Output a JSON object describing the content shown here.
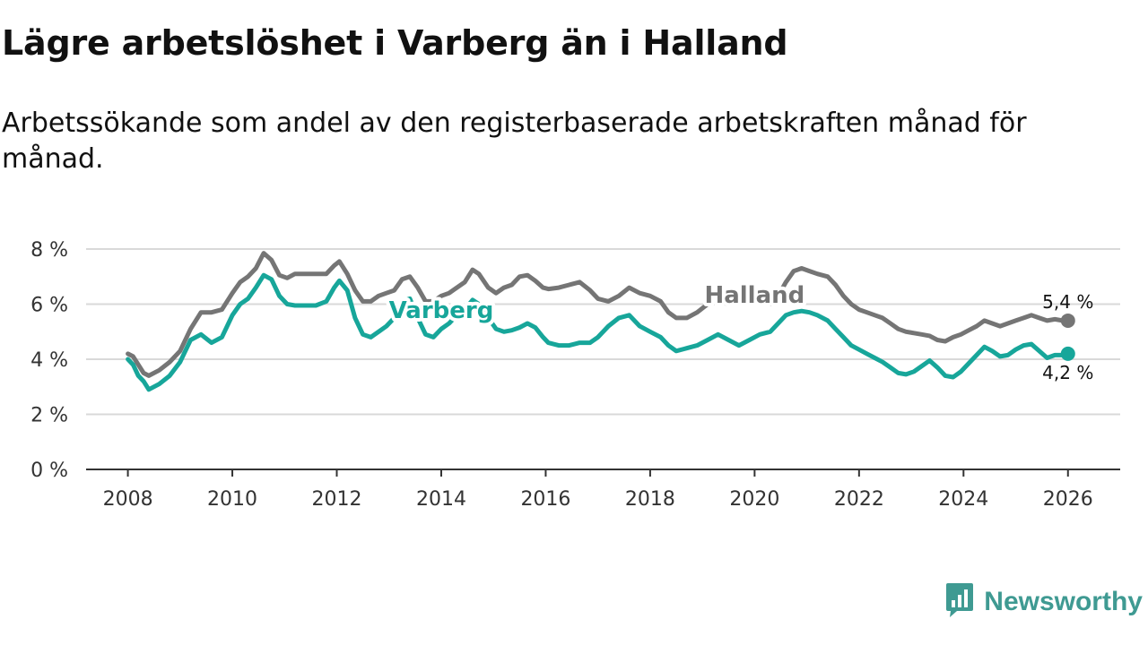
{
  "header": {
    "title": "Lägre arbetslöshet i Varberg än i Halland",
    "subtitle": "Arbetssökande som andel av den registerbaserade arbetskraften månad för månad."
  },
  "brand": {
    "name": "Newsworthy",
    "icon": "newsworthy-logo-icon",
    "color": "#3f9a92"
  },
  "chart_data": {
    "type": "line",
    "title": "Lägre arbetslöshet i Varberg än i Halland",
    "subtitle": "Arbetssökande som andel av den registerbaserade arbetskraften månad för månad.",
    "xlabel": "",
    "ylabel": "",
    "xlim": [
      2007.2,
      2027.0
    ],
    "ylim": [
      0,
      8
    ],
    "grid": true,
    "x_ticks": [
      2008,
      2010,
      2012,
      2014,
      2016,
      2018,
      2020,
      2022,
      2024,
      2026
    ],
    "x_tick_labels": [
      "2008",
      "2010",
      "2012",
      "2014",
      "2016",
      "2018",
      "2020",
      "2022",
      "2024",
      "2026"
    ],
    "y_ticks": [
      0,
      2,
      4,
      6,
      8
    ],
    "y_tick_labels": [
      "0 %",
      "2 %",
      "4 %",
      "6 %",
      "8 %"
    ],
    "series": [
      {
        "name": "Halland",
        "color": "#757575",
        "end_label": "5,4 %",
        "label_x": 2020.0,
        "label_y": 6.05,
        "points": [
          [
            2008.0,
            4.2
          ],
          [
            2008.1,
            4.1
          ],
          [
            2008.2,
            3.8
          ],
          [
            2008.3,
            3.5
          ],
          [
            2008.4,
            3.4
          ],
          [
            2008.6,
            3.6
          ],
          [
            2008.8,
            3.9
          ],
          [
            2009.0,
            4.3
          ],
          [
            2009.2,
            5.1
          ],
          [
            2009.4,
            5.7
          ],
          [
            2009.6,
            5.7
          ],
          [
            2009.8,
            5.8
          ],
          [
            2010.0,
            6.4
          ],
          [
            2010.15,
            6.8
          ],
          [
            2010.3,
            7.0
          ],
          [
            2010.45,
            7.3
          ],
          [
            2010.6,
            7.85
          ],
          [
            2010.75,
            7.6
          ],
          [
            2010.9,
            7.05
          ],
          [
            2011.05,
            6.95
          ],
          [
            2011.2,
            7.1
          ],
          [
            2011.4,
            7.1
          ],
          [
            2011.6,
            7.1
          ],
          [
            2011.8,
            7.1
          ],
          [
            2011.95,
            7.4
          ],
          [
            2012.05,
            7.55
          ],
          [
            2012.2,
            7.1
          ],
          [
            2012.35,
            6.5
          ],
          [
            2012.5,
            6.1
          ],
          [
            2012.65,
            6.1
          ],
          [
            2012.8,
            6.3
          ],
          [
            2012.95,
            6.4
          ],
          [
            2013.1,
            6.5
          ],
          [
            2013.25,
            6.9
          ],
          [
            2013.4,
            7.0
          ],
          [
            2013.55,
            6.6
          ],
          [
            2013.7,
            6.1
          ],
          [
            2013.85,
            6.1
          ],
          [
            2014.0,
            6.3
          ],
          [
            2014.15,
            6.4
          ],
          [
            2014.3,
            6.6
          ],
          [
            2014.45,
            6.8
          ],
          [
            2014.6,
            7.25
          ],
          [
            2014.72,
            7.1
          ],
          [
            2014.9,
            6.6
          ],
          [
            2015.05,
            6.4
          ],
          [
            2015.2,
            6.6
          ],
          [
            2015.35,
            6.7
          ],
          [
            2015.5,
            7.0
          ],
          [
            2015.65,
            7.05
          ],
          [
            2015.8,
            6.85
          ],
          [
            2015.95,
            6.6
          ],
          [
            2016.05,
            6.55
          ],
          [
            2016.25,
            6.6
          ],
          [
            2016.45,
            6.7
          ],
          [
            2016.65,
            6.8
          ],
          [
            2016.85,
            6.5
          ],
          [
            2017.0,
            6.2
          ],
          [
            2017.2,
            6.1
          ],
          [
            2017.4,
            6.3
          ],
          [
            2017.6,
            6.6
          ],
          [
            2017.8,
            6.4
          ],
          [
            2018.0,
            6.3
          ],
          [
            2018.2,
            6.1
          ],
          [
            2018.35,
            5.7
          ],
          [
            2018.5,
            5.5
          ],
          [
            2018.7,
            5.5
          ],
          [
            2018.9,
            5.7
          ],
          [
            2019.1,
            6.0
          ],
          [
            2019.3,
            6.1
          ],
          [
            2019.5,
            6.0
          ],
          [
            2019.7,
            6.2
          ],
          [
            2019.9,
            6.4
          ],
          [
            2020.1,
            6.1
          ],
          [
            2020.3,
            6.0
          ],
          [
            2020.45,
            6.3
          ],
          [
            2020.6,
            6.8
          ],
          [
            2020.75,
            7.2
          ],
          [
            2020.9,
            7.3
          ],
          [
            2021.05,
            7.2
          ],
          [
            2021.2,
            7.1
          ],
          [
            2021.4,
            7.0
          ],
          [
            2021.55,
            6.7
          ],
          [
            2021.7,
            6.3
          ],
          [
            2021.85,
            6.0
          ],
          [
            2022.0,
            5.8
          ],
          [
            2022.15,
            5.7
          ],
          [
            2022.3,
            5.6
          ],
          [
            2022.45,
            5.5
          ],
          [
            2022.6,
            5.3
          ],
          [
            2022.75,
            5.1
          ],
          [
            2022.9,
            5.0
          ],
          [
            2023.05,
            4.95
          ],
          [
            2023.2,
            4.9
          ],
          [
            2023.35,
            4.85
          ],
          [
            2023.5,
            4.7
          ],
          [
            2023.65,
            4.65
          ],
          [
            2023.8,
            4.8
          ],
          [
            2023.95,
            4.9
          ],
          [
            2024.1,
            5.05
          ],
          [
            2024.25,
            5.2
          ],
          [
            2024.4,
            5.4
          ],
          [
            2024.55,
            5.3
          ],
          [
            2024.7,
            5.2
          ],
          [
            2024.85,
            5.3
          ],
          [
            2025.0,
            5.4
          ],
          [
            2025.15,
            5.5
          ],
          [
            2025.3,
            5.6
          ],
          [
            2025.45,
            5.5
          ],
          [
            2025.6,
            5.4
          ],
          [
            2025.75,
            5.45
          ],
          [
            2025.9,
            5.4
          ],
          [
            2026.0,
            5.4
          ]
        ]
      },
      {
        "name": "Varberg",
        "color": "#17a69a",
        "end_label": "4,2 %",
        "label_x": 2014.0,
        "label_y": 5.5,
        "points": [
          [
            2008.0,
            4.0
          ],
          [
            2008.1,
            3.8
          ],
          [
            2008.2,
            3.4
          ],
          [
            2008.3,
            3.2
          ],
          [
            2008.4,
            2.9
          ],
          [
            2008.6,
            3.1
          ],
          [
            2008.8,
            3.4
          ],
          [
            2009.0,
            3.9
          ],
          [
            2009.2,
            4.7
          ],
          [
            2009.4,
            4.9
          ],
          [
            2009.6,
            4.6
          ],
          [
            2009.8,
            4.8
          ],
          [
            2010.0,
            5.6
          ],
          [
            2010.15,
            6.0
          ],
          [
            2010.3,
            6.2
          ],
          [
            2010.45,
            6.6
          ],
          [
            2010.6,
            7.05
          ],
          [
            2010.75,
            6.9
          ],
          [
            2010.9,
            6.3
          ],
          [
            2011.05,
            6.0
          ],
          [
            2011.2,
            5.95
          ],
          [
            2011.4,
            5.95
          ],
          [
            2011.6,
            5.95
          ],
          [
            2011.8,
            6.1
          ],
          [
            2011.95,
            6.6
          ],
          [
            2012.05,
            6.85
          ],
          [
            2012.2,
            6.5
          ],
          [
            2012.35,
            5.5
          ],
          [
            2012.5,
            4.9
          ],
          [
            2012.65,
            4.8
          ],
          [
            2012.8,
            5.0
          ],
          [
            2012.95,
            5.2
          ],
          [
            2013.1,
            5.5
          ],
          [
            2013.25,
            6.1
          ],
          [
            2013.4,
            6.2
          ],
          [
            2013.55,
            5.5
          ],
          [
            2013.7,
            4.9
          ],
          [
            2013.85,
            4.8
          ],
          [
            2014.0,
            5.1
          ],
          [
            2014.15,
            5.3
          ],
          [
            2014.3,
            5.6
          ],
          [
            2014.45,
            5.8
          ],
          [
            2014.6,
            6.15
          ],
          [
            2014.72,
            6.0
          ],
          [
            2014.9,
            5.5
          ],
          [
            2015.05,
            5.1
          ],
          [
            2015.2,
            5.0
          ],
          [
            2015.35,
            5.05
          ],
          [
            2015.5,
            5.15
          ],
          [
            2015.65,
            5.3
          ],
          [
            2015.8,
            5.15
          ],
          [
            2015.95,
            4.8
          ],
          [
            2016.05,
            4.6
          ],
          [
            2016.25,
            4.5
          ],
          [
            2016.45,
            4.5
          ],
          [
            2016.65,
            4.6
          ],
          [
            2016.85,
            4.6
          ],
          [
            2017.0,
            4.8
          ],
          [
            2017.2,
            5.2
          ],
          [
            2017.4,
            5.5
          ],
          [
            2017.6,
            5.6
          ],
          [
            2017.8,
            5.2
          ],
          [
            2018.0,
            5.0
          ],
          [
            2018.2,
            4.8
          ],
          [
            2018.35,
            4.5
          ],
          [
            2018.5,
            4.3
          ],
          [
            2018.7,
            4.4
          ],
          [
            2018.9,
            4.5
          ],
          [
            2019.1,
            4.7
          ],
          [
            2019.3,
            4.9
          ],
          [
            2019.5,
            4.7
          ],
          [
            2019.7,
            4.5
          ],
          [
            2019.9,
            4.7
          ],
          [
            2020.1,
            4.9
          ],
          [
            2020.3,
            5.0
          ],
          [
            2020.45,
            5.3
          ],
          [
            2020.6,
            5.6
          ],
          [
            2020.75,
            5.7
          ],
          [
            2020.9,
            5.75
          ],
          [
            2021.05,
            5.7
          ],
          [
            2021.2,
            5.6
          ],
          [
            2021.4,
            5.4
          ],
          [
            2021.55,
            5.1
          ],
          [
            2021.7,
            4.8
          ],
          [
            2021.85,
            4.5
          ],
          [
            2022.0,
            4.35
          ],
          [
            2022.15,
            4.2
          ],
          [
            2022.3,
            4.05
          ],
          [
            2022.45,
            3.9
          ],
          [
            2022.6,
            3.7
          ],
          [
            2022.75,
            3.5
          ],
          [
            2022.9,
            3.45
          ],
          [
            2023.05,
            3.55
          ],
          [
            2023.2,
            3.75
          ],
          [
            2023.35,
            3.95
          ],
          [
            2023.5,
            3.7
          ],
          [
            2023.65,
            3.4
          ],
          [
            2023.8,
            3.35
          ],
          [
            2023.95,
            3.55
          ],
          [
            2024.1,
            3.85
          ],
          [
            2024.25,
            4.15
          ],
          [
            2024.4,
            4.45
          ],
          [
            2024.55,
            4.3
          ],
          [
            2024.7,
            4.1
          ],
          [
            2024.85,
            4.15
          ],
          [
            2025.0,
            4.35
          ],
          [
            2025.15,
            4.5
          ],
          [
            2025.3,
            4.55
          ],
          [
            2025.45,
            4.3
          ],
          [
            2025.6,
            4.05
          ],
          [
            2025.75,
            4.15
          ],
          [
            2025.9,
            4.15
          ],
          [
            2026.0,
            4.2
          ]
        ]
      }
    ]
  }
}
